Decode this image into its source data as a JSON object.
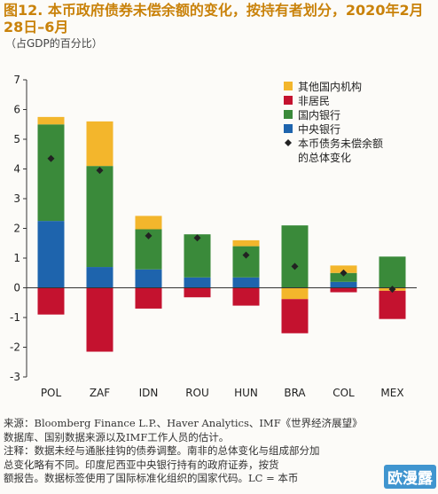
{
  "title": "图12. 本币政府债券未偿余额的变化，按持有者划分，2020年2月28日–6月",
  "subtitle": "（占GDP的百分比）",
  "chart_data": {
    "type": "bar",
    "stacked": true,
    "categories": [
      "POL",
      "ZAF",
      "IDN",
      "ROU",
      "HUN",
      "BRA",
      "COL",
      "MEX"
    ],
    "ylim": [
      -3,
      7
    ],
    "yticks": [
      -3,
      -2,
      -1,
      0,
      1,
      2,
      3,
      4,
      5,
      6,
      7
    ],
    "grid": false,
    "legend_position": "top-right",
    "series": [
      {
        "name": "其他国内机构",
        "color": "#f3b62c",
        "values": [
          0.25,
          1.5,
          0.45,
          0,
          0.2,
          -0.38,
          0.25,
          -0.1
        ]
      },
      {
        "name": "非居民",
        "color": "#c4122f",
        "values": [
          -0.9,
          -2.15,
          -0.7,
          -0.32,
          -0.6,
          -1.15,
          -0.15,
          -0.95
        ]
      },
      {
        "name": "国内银行",
        "color": "#3a8a3a",
        "values": [
          3.25,
          3.4,
          1.35,
          1.45,
          1.05,
          2.1,
          0.3,
          1.05
        ]
      },
      {
        "name": "中央银行",
        "color": "#1e64ad",
        "values": [
          2.25,
          0.7,
          0.62,
          0.35,
          0.35,
          0,
          0.2,
          0
        ]
      }
    ],
    "total_change": {
      "name": "本币债务未偿余额的总体变化",
      "values": [
        4.35,
        3.95,
        1.75,
        1.68,
        1.1,
        0.72,
        0.5,
        -0.05
      ]
    }
  },
  "notes": {
    "source_line1": "来源：Bloomberg Finance L.P.、Haver Analytics、IMF《世界经济展望》",
    "source_line2": "数据库、国别数据来源以及IMF工作人员的估计。",
    "note_line1": "注释：数据未经与通胀挂钩的债券调整。南非的总体变化与组成部分加",
    "note_line2": "总变化略有不同。印度尼西亚中央银行持有的政府证券，按货",
    "note_line3": "额报告。数据标签使用了国际标准化组织的国家代码。LC = 本币"
  },
  "watermark": "欧漫露"
}
